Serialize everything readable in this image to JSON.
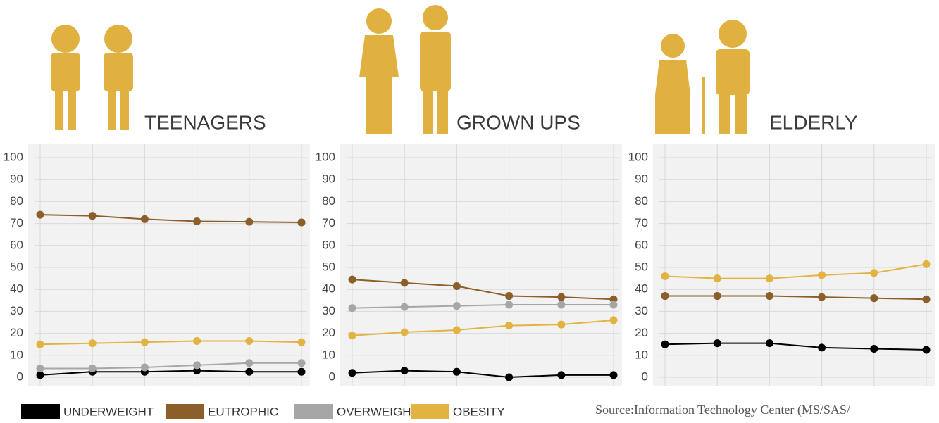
{
  "chart_data": [
    {
      "type": "line",
      "title": "TEENAGERS",
      "categories": [
        null,
        null,
        null,
        null,
        null,
        null
      ],
      "series": [
        {
          "values": [
            1,
            2.5,
            2.5,
            3,
            2.5,
            2.5
          ]
        },
        {
          "values": [
            74,
            73.5,
            72,
            71,
            70.8,
            70.5
          ]
        },
        {
          "values": [
            4,
            4,
            4.5,
            5.5,
            6.5,
            6.5
          ]
        },
        {
          "values": [
            15,
            15.5,
            16,
            16.5,
            16.5,
            16
          ]
        }
      ],
      "ylim": [
        0,
        100
      ],
      "yticks": [
        0,
        10,
        20,
        30,
        40,
        50,
        60,
        70,
        80,
        90,
        100
      ],
      "grid": true
    },
    {
      "type": "line",
      "title": "GROWN UPS",
      "categories": [
        null,
        null,
        null,
        null,
        null,
        null
      ],
      "series": [
        {
          "values": [
            2,
            3,
            2.5,
            0,
            1,
            1
          ]
        },
        {
          "values": [
            44.5,
            43,
            41.5,
            37,
            36.5,
            35.5
          ]
        },
        {
          "values": [
            31.5,
            32,
            32.5,
            33,
            33,
            33
          ]
        },
        {
          "values": [
            19,
            20.5,
            21.5,
            23.5,
            24,
            26
          ]
        }
      ],
      "ylim": [
        0,
        100
      ],
      "yticks": [
        0,
        10,
        20,
        30,
        40,
        50,
        60,
        70,
        80,
        90,
        100
      ],
      "grid": true
    },
    {
      "type": "line",
      "title": "ELDERLY",
      "categories": [
        null,
        null,
        null,
        null,
        null,
        null
      ],
      "series": [
        {
          "values": [
            15,
            15.5,
            15.5,
            13.5,
            13,
            12.5
          ]
        },
        {
          "values": [
            37,
            37,
            37,
            36.5,
            36,
            35.5
          ]
        },
        {
          "values": [
            null,
            null,
            null,
            null,
            null,
            null
          ]
        },
        {
          "values": [
            46,
            45,
            45,
            46.5,
            47.5,
            51.5
          ]
        }
      ],
      "ylim": [
        0,
        100
      ],
      "yticks": [
        0,
        10,
        20,
        30,
        40,
        50,
        60,
        70,
        80,
        90,
        100
      ],
      "grid": true
    }
  ],
  "legend": [
    {
      "name": "UNDERWEIGHT",
      "color": "#000000"
    },
    {
      "name": "EUTROPHIC",
      "color": "#8b5e2a"
    },
    {
      "name": "OVERWEIGHT",
      "color": "#a6a6a8"
    },
    {
      "name": "OBESITY",
      "color": "#e3b341"
    }
  ],
  "source": "Source:Information Technology Center  (MS/SAS/"
}
